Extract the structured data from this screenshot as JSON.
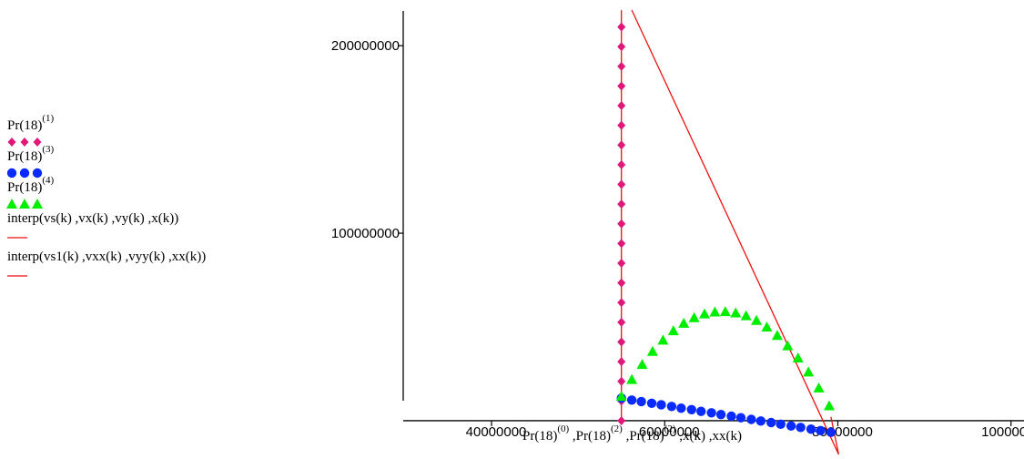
{
  "chart_data": {
    "type": "scatter",
    "xlabel": {
      "parts": [
        "Pr(18)",
        "(0)",
        " ,Pr(18)",
        "(2)",
        " ,Pr(18)",
        "(2)",
        " ,x(k) ,xx(k)"
      ]
    },
    "ylabel": "",
    "xlim": [
      29800000,
      101500000
    ],
    "ylim": [
      -18000000,
      220000000
    ],
    "x_ticks": [
      40000000,
      60000000,
      80000000,
      100000000
    ],
    "x_tick_labels": [
      "40000000",
      "60000000",
      "80000000",
      "100000000"
    ],
    "y_ticks": [
      100000000,
      200000000
    ],
    "y_tick_labels": [
      "100000000",
      "200000000"
    ],
    "grid": false,
    "legend_position": "left",
    "legend": [
      {
        "base": "Pr(18)",
        "sup": "(1)",
        "color": "#e0187a",
        "marker": "diamond"
      },
      {
        "base": "Pr(18)",
        "sup": "(3)",
        "color": "#0a2bff",
        "marker": "circle"
      },
      {
        "base": "Pr(18)",
        "sup": "(4)",
        "color": "#00ee00",
        "marker": "triangle"
      },
      {
        "base": "interp(vs(k) ,vx(k) ,vy(k) ,x(k))",
        "sup": "",
        "color": "#ee1111",
        "marker": "line"
      },
      {
        "base": "interp(vs1(k) ,vxx(k) ,vyy(k) ,xx(k))",
        "sup": "",
        "color": "#ee1111",
        "marker": "line"
      }
    ],
    "series": [
      {
        "marker": "diamond",
        "color": "#e0187a",
        "x": [
          55000000,
          55000000,
          55000000,
          55000000,
          55000000,
          55000000,
          55000000,
          55000000,
          55000000,
          55000000,
          55000000,
          55000000,
          55000000,
          55000000,
          55000000,
          55000000,
          55000000,
          55000000,
          55000000,
          55000000,
          55000000
        ],
        "y": [
          210000000,
          199500000,
          189000000,
          178500000,
          168000000,
          157500000,
          147000000,
          136500000,
          126000000,
          115500000,
          105000000,
          94500000,
          84000000,
          73500000,
          63000000,
          52500000,
          42000000,
          31500000,
          21000000,
          10500000,
          0
        ]
      },
      {
        "marker": "circle",
        "color": "#0a2bff",
        "x": [
          55000000,
          56200000,
          57300000,
          58500000,
          59600000,
          60800000,
          61900000,
          63100000,
          64200000,
          65400000,
          66500000,
          67700000,
          68800000,
          70000000,
          71100000,
          72300000,
          73400000,
          74600000,
          75700000,
          76900000,
          78000000,
          79200000
        ],
        "y": [
          12000000,
          11000000,
          10200000,
          9300000,
          8500000,
          7600000,
          6700000,
          5900000,
          5000000,
          4200000,
          3300000,
          2400000,
          1600000,
          700000,
          -200000,
          -1000000,
          -1900000,
          -2800000,
          -3600000,
          -4500000,
          -5300000,
          -6200000
        ]
      },
      {
        "marker": "triangle",
        "color": "#00ee00",
        "x": [
          55000000,
          56200000,
          57400000,
          58600000,
          59800000,
          61000000,
          62200000,
          63400000,
          64600000,
          65800000,
          67000000,
          68200000,
          69400000,
          70600000,
          71800000,
          73000000,
          74200000,
          75400000,
          76600000,
          77800000,
          79000000
        ],
        "y": [
          13000000,
          22000000,
          30000000,
          37000000,
          43000000,
          48000000,
          52000000,
          55000000,
          57000000,
          58000000,
          58200000,
          57500000,
          56000000,
          53500000,
          50000000,
          45500000,
          40000000,
          33500000,
          26000000,
          17500000,
          8000000
        ]
      },
      {
        "marker": "line",
        "color": "#ee1111",
        "x": [
          55000000,
          55000000
        ],
        "y": [
          -2000000,
          219000000
        ]
      },
      {
        "marker": "line",
        "color": "#ee1111",
        "x": [
          56200000,
          80100000,
          79200000,
          80100000
        ],
        "y": [
          219000000,
          -18000000,
          2000000,
          -18000000
        ]
      }
    ]
  }
}
